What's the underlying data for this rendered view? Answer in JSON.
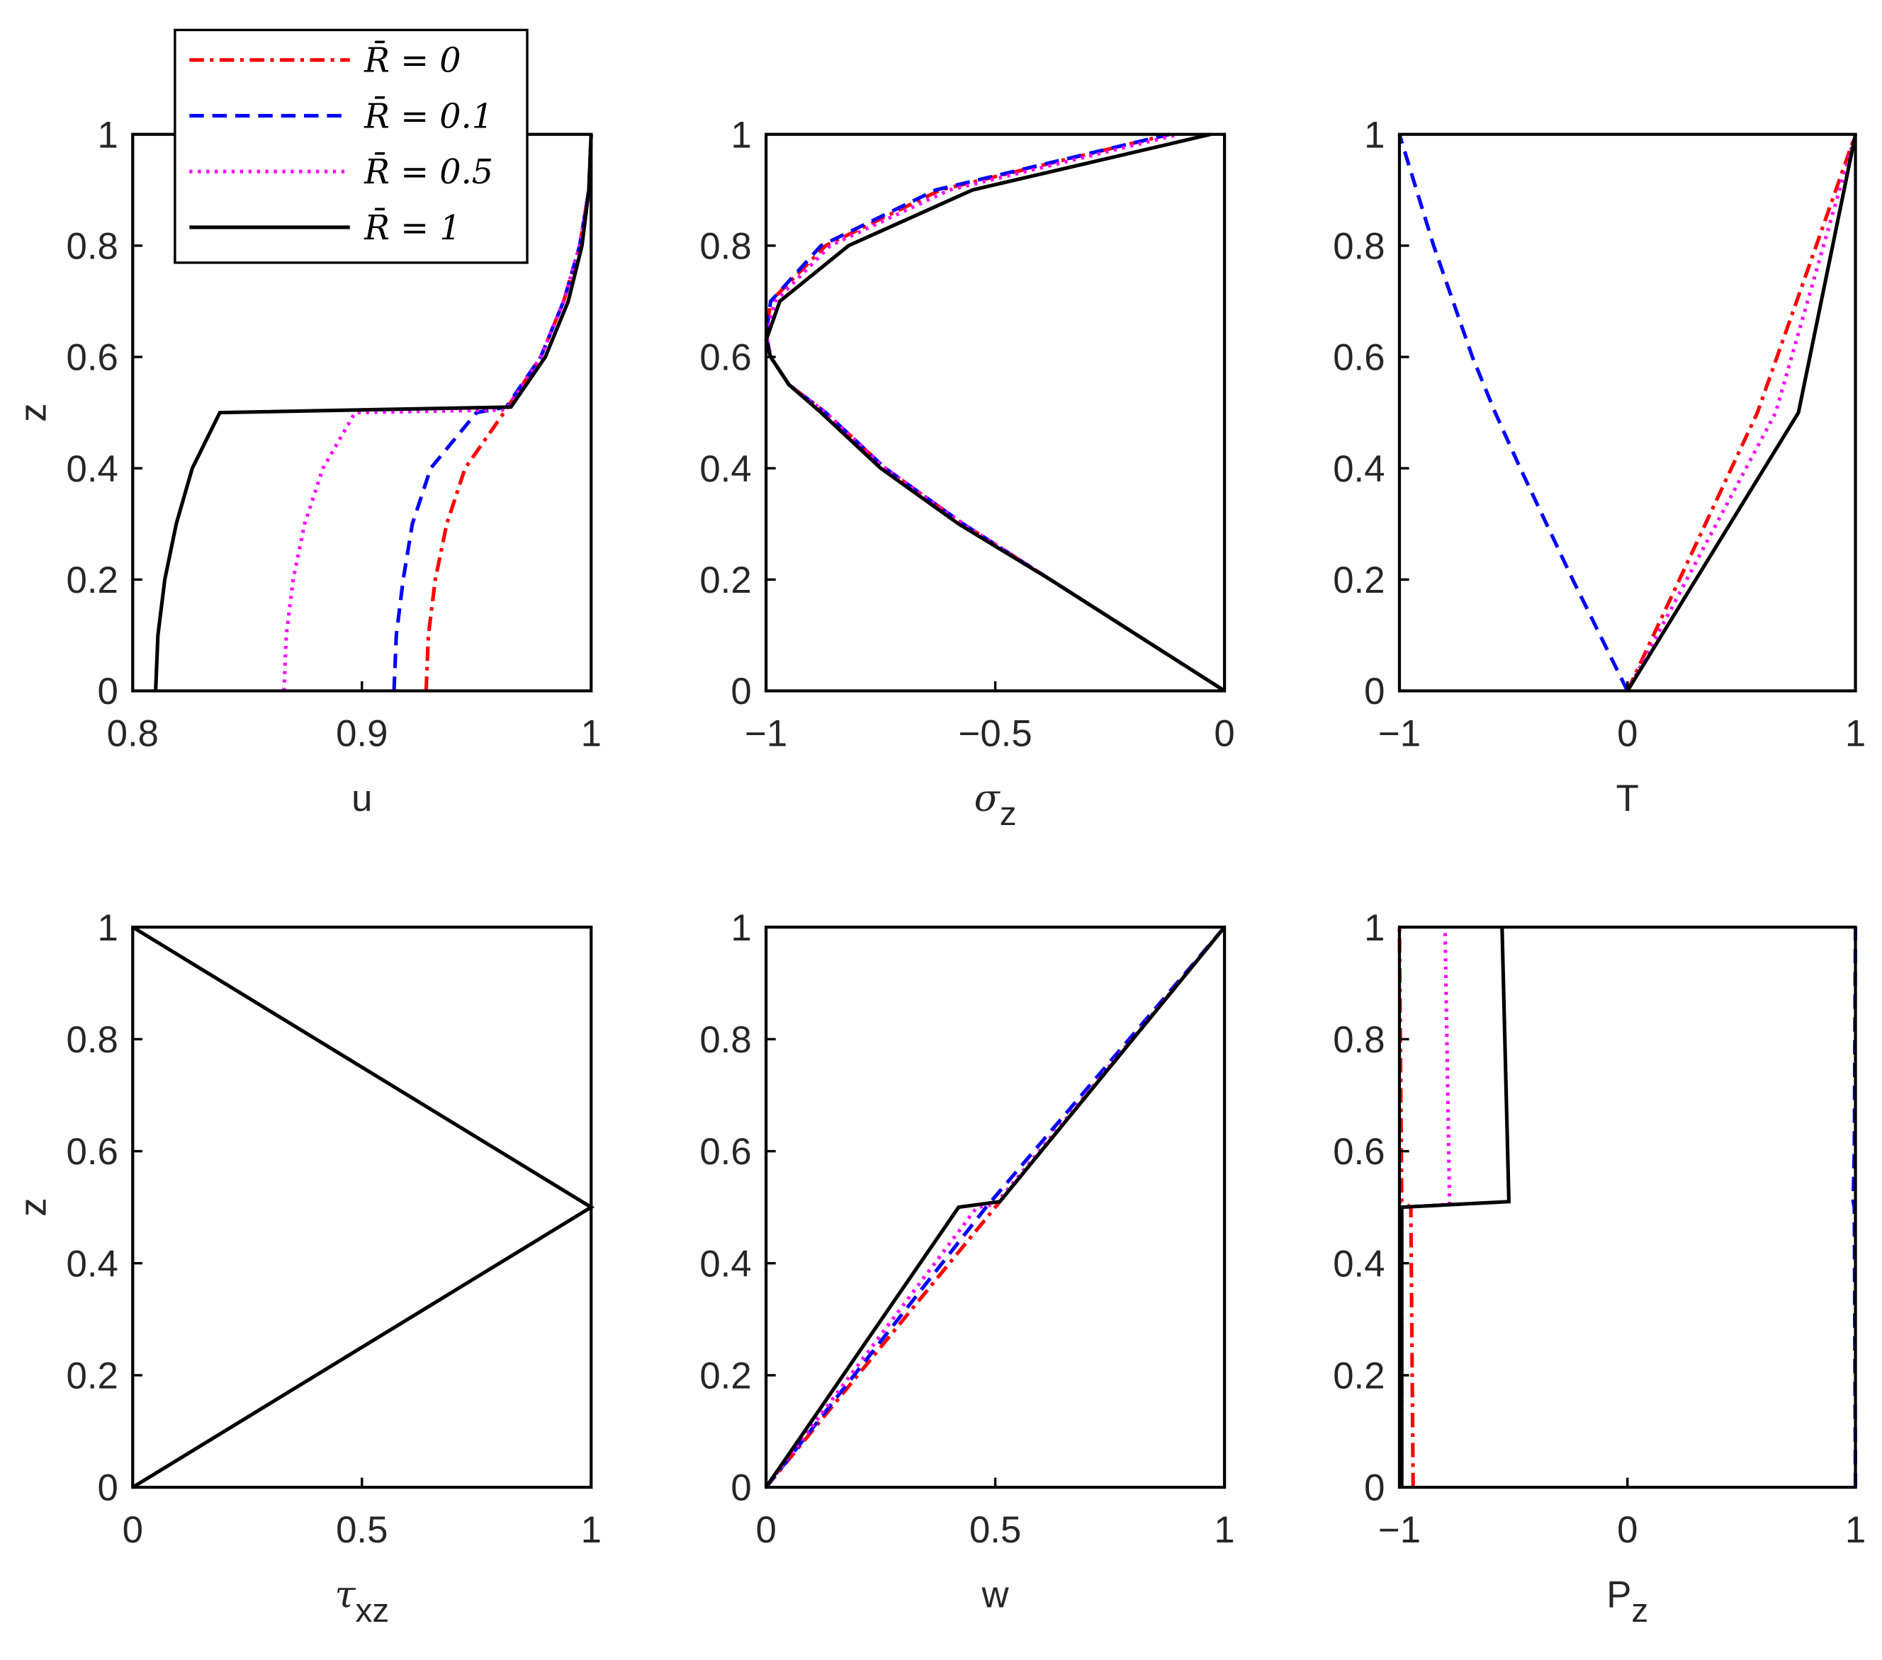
{
  "chart_data": [
    {
      "type": "line",
      "xlabel": "u",
      "ylabel": "z",
      "legend": "upper left",
      "xlim": [
        0.8,
        1
      ],
      "ylim": [
        0,
        1
      ],
      "xticks": [
        0.8,
        0.9,
        1
      ],
      "yticks": [
        0,
        0.2,
        0.4,
        0.6,
        0.8,
        1
      ],
      "series": [
        {
          "name": "R̄ = 0",
          "color": "#ff0000",
          "style": "dashdot",
          "x": [
            0.928,
            0.929,
            0.932,
            0.937,
            0.945,
            0.962,
            0.978,
            0.988,
            0.995,
            0.999,
            1
          ],
          "y": [
            0,
            0.1,
            0.2,
            0.3,
            0.4,
            0.5,
            0.6,
            0.7,
            0.8,
            0.9,
            1
          ]
        },
        {
          "name": "R̄ = 0.1",
          "color": "#0000ff",
          "style": "dashed",
          "x": [
            0.914,
            0.915,
            0.918,
            0.922,
            0.93,
            0.95,
            0.963,
            0.978,
            0.988,
            0.995,
            0.999,
            1
          ],
          "y": [
            0,
            0.1,
            0.2,
            0.3,
            0.4,
            0.5,
            0.51,
            0.6,
            0.7,
            0.8,
            0.9,
            1
          ]
        },
        {
          "name": "R̄ = 0.5",
          "color": "#ff00ff",
          "style": "dotted",
          "x": [
            0.866,
            0.867,
            0.87,
            0.875,
            0.883,
            0.897,
            0.963,
            0.978,
            0.988,
            0.995,
            0.999,
            1
          ],
          "y": [
            0,
            0.1,
            0.2,
            0.3,
            0.4,
            0.5,
            0.505,
            0.6,
            0.7,
            0.8,
            0.9,
            1
          ]
        },
        {
          "name": "R̄ = 1",
          "color": "#000000",
          "style": "solid",
          "x": [
            0.81,
            0.811,
            0.814,
            0.819,
            0.826,
            0.838,
            0.965,
            0.98,
            0.99,
            0.996,
            0.999,
            1
          ],
          "y": [
            0,
            0.1,
            0.2,
            0.3,
            0.4,
            0.5,
            0.51,
            0.6,
            0.7,
            0.8,
            0.9,
            1
          ]
        }
      ]
    },
    {
      "type": "line",
      "xlabel": "σ",
      "xlabel_subscript": "z",
      "ylabel": "z",
      "xlim": [
        -1,
        0
      ],
      "ylim": [
        0,
        1
      ],
      "xticks": [
        {
          "value": -1,
          "label": "−1"
        },
        {
          "value": -0.5,
          "label": "−0.5"
        },
        0
      ],
      "yticks": [
        0,
        0.2,
        0.4,
        0.6,
        0.8,
        1
      ],
      "series": [
        {
          "color": "#ff0000",
          "style": "dashdot",
          "x": [
            0,
            -0.19,
            -0.38,
            -0.57,
            -0.74,
            -0.87,
            -0.95,
            -0.99,
            -1,
            -0.99,
            -0.87,
            -0.62,
            -0.12
          ],
          "y": [
            0,
            0.1,
            0.2,
            0.3,
            0.4,
            0.5,
            0.55,
            0.6,
            0.64,
            0.7,
            0.8,
            0.9,
            1
          ]
        },
        {
          "color": "#0000ff",
          "style": "dashed",
          "x": [
            0,
            -0.19,
            -0.38,
            -0.57,
            -0.74,
            -0.87,
            -0.95,
            -0.99,
            -1,
            -0.99,
            -0.88,
            -0.63,
            -0.12
          ],
          "y": [
            0,
            0.1,
            0.2,
            0.3,
            0.4,
            0.5,
            0.55,
            0.6,
            0.64,
            0.7,
            0.8,
            0.9,
            1
          ]
        },
        {
          "color": "#ff00ff",
          "style": "dotted",
          "x": [
            0,
            -0.19,
            -0.38,
            -0.57,
            -0.74,
            -0.87,
            -0.95,
            -0.99,
            -1,
            -0.98,
            -0.86,
            -0.6,
            -0.1
          ],
          "y": [
            0,
            0.1,
            0.2,
            0.3,
            0.4,
            0.5,
            0.55,
            0.6,
            0.64,
            0.7,
            0.8,
            0.9,
            1
          ]
        },
        {
          "color": "#000000",
          "style": "solid",
          "x": [
            0,
            -0.19,
            -0.38,
            -0.58,
            -0.75,
            -0.88,
            -0.95,
            -0.99,
            -1,
            -0.97,
            -0.82,
            -0.55,
            -0.03
          ],
          "y": [
            0,
            0.1,
            0.2,
            0.3,
            0.4,
            0.5,
            0.55,
            0.6,
            0.63,
            0.7,
            0.8,
            0.9,
            1
          ]
        }
      ]
    },
    {
      "type": "line",
      "xlabel": "T",
      "ylabel": "z",
      "xlim": [
        -1,
        1
      ],
      "ylim": [
        0,
        1
      ],
      "xticks": [
        {
          "value": -1,
          "label": "−1"
        },
        0,
        1
      ],
      "yticks": [
        0,
        0.2,
        0.4,
        0.6,
        0.8,
        1
      ],
      "series": [
        {
          "color": "#ff0000",
          "style": "dashdot",
          "x": [
            0,
            0.57,
            1
          ],
          "y": [
            0,
            0.5,
            1
          ]
        },
        {
          "color": "#0000ff",
          "style": "dashed",
          "x": [
            0,
            -0.24,
            -0.47,
            -0.58,
            -0.68,
            -0.85,
            -1
          ],
          "y": [
            0,
            0.2,
            0.4,
            0.5,
            0.6,
            0.8,
            1
          ]
        },
        {
          "color": "#ff00ff",
          "style": "dotted",
          "x": [
            0,
            0.65,
            1
          ],
          "y": [
            0,
            0.5,
            1
          ]
        },
        {
          "color": "#000000",
          "style": "solid",
          "x": [
            0,
            0.75,
            1
          ],
          "y": [
            0,
            0.5,
            1
          ]
        }
      ]
    },
    {
      "type": "line",
      "xlabel": "τ",
      "xlabel_subscript": "xz",
      "ylabel": "z",
      "xlim": [
        0,
        1
      ],
      "ylim": [
        0,
        1
      ],
      "xticks": [
        0,
        0.5,
        1
      ],
      "yticks": [
        0,
        0.2,
        0.4,
        0.6,
        0.8,
        1
      ],
      "series": [
        {
          "color": "#000000",
          "style": "solid",
          "x": [
            0,
            1,
            0
          ],
          "y": [
            0,
            0.5,
            1
          ]
        }
      ]
    },
    {
      "type": "line",
      "xlabel": "w",
      "ylabel": "z",
      "xlim": [
        0,
        1
      ],
      "ylim": [
        0,
        1
      ],
      "xticks": [
        0,
        0.5,
        1
      ],
      "yticks": [
        0,
        0.2,
        0.4,
        0.6,
        0.8,
        1
      ],
      "series": [
        {
          "color": "#ff0000",
          "style": "dashdot",
          "x": [
            0,
            0.5,
            1
          ],
          "y": [
            0,
            0.5,
            1
          ]
        },
        {
          "color": "#0000ff",
          "style": "dashed",
          "x": [
            0,
            0.48,
            1
          ],
          "y": [
            0,
            0.5,
            1
          ]
        },
        {
          "color": "#ff00ff",
          "style": "dotted",
          "x": [
            0,
            0.46,
            0.5,
            1
          ],
          "y": [
            0,
            0.5,
            0.505,
            1
          ]
        },
        {
          "color": "#000000",
          "style": "solid",
          "x": [
            0,
            0.42,
            0.51,
            1
          ],
          "y": [
            0,
            0.5,
            0.51,
            1
          ]
        }
      ]
    },
    {
      "type": "line",
      "xlabel": "P",
      "xlabel_subscript": "z",
      "ylabel": "z",
      "xlim": [
        -1,
        1
      ],
      "ylim": [
        0,
        1
      ],
      "xticks": [
        {
          "value": -1,
          "label": "−1"
        },
        0,
        1
      ],
      "yticks": [
        0,
        0.2,
        0.4,
        0.6,
        0.8,
        1
      ],
      "series": [
        {
          "color": "#ff0000",
          "style": "dashdot",
          "x": [
            -0.94,
            -0.95,
            -0.99,
            -1
          ],
          "y": [
            0,
            0.5,
            0.51,
            1
          ]
        },
        {
          "color": "#0000ff",
          "style": "dashed",
          "x": [
            1,
            0.995,
            0.99,
            0.995,
            1
          ],
          "y": [
            0,
            0.5,
            0.51,
            0.6,
            1
          ]
        },
        {
          "color": "#ff00ff",
          "style": "dotted",
          "x": [
            -0.99,
            -0.99,
            -0.78,
            -0.8
          ],
          "y": [
            0,
            0.5,
            0.505,
            1
          ]
        },
        {
          "color": "#000000",
          "style": "solid",
          "x": [
            -0.99,
            -0.99,
            -0.52,
            -0.55
          ],
          "y": [
            0,
            0.5,
            0.51,
            1
          ]
        }
      ]
    }
  ]
}
